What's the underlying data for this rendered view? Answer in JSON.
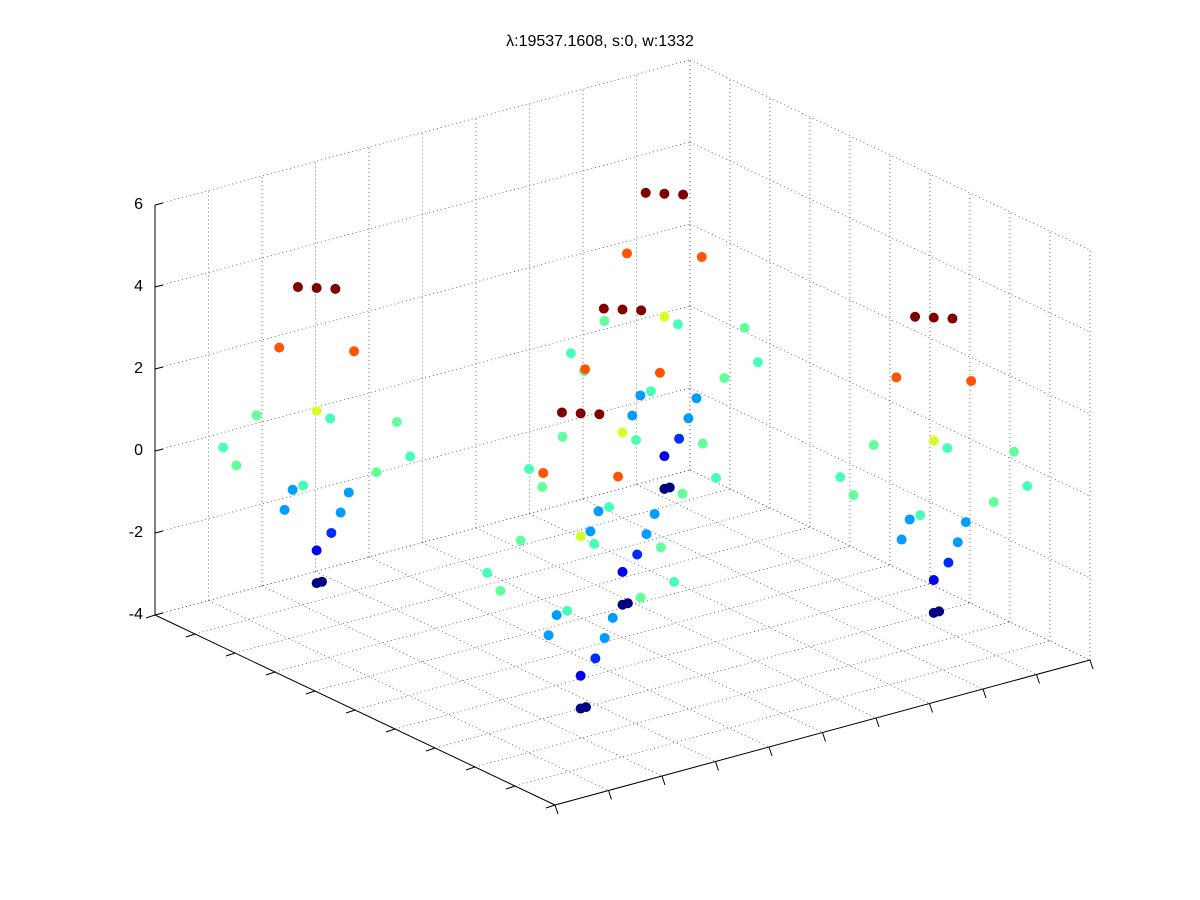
{
  "chart_data": {
    "type": "scatter3d",
    "title": "λ:19537.1608, s:0, w:1332",
    "xlim": [
      0,
      10
    ],
    "ylim": [
      0,
      10
    ],
    "zlim": [
      -4,
      6
    ],
    "xticks": [
      0,
      1,
      2,
      3,
      4,
      5,
      6,
      7,
      8,
      9,
      10
    ],
    "yticks": [
      0,
      1,
      2,
      3,
      4,
      5,
      6,
      7,
      8,
      9,
      10
    ],
    "zticks": [
      -4,
      -2,
      0,
      2,
      4,
      6
    ],
    "grid": true,
    "colormap": "jet",
    "x": [
      1.9,
      2,
      1.9,
      2.1,
      2.5,
      1.3,
      1.9,
      1.9,
      2.9,
      2.9,
      0.9,
      0.9,
      3.4,
      0.4,
      1.9,
      1.9,
      1.9,
      2.3,
      1.5,
      1.9,
      2.1,
      1.7,
      8.4,
      8.5,
      8.4,
      8.6,
      9,
      7.8,
      8.4,
      8.4,
      9.4,
      9.4,
      7.4,
      7.4,
      9.9,
      6.9,
      8.4,
      8.4,
      8.4,
      8.8,
      8,
      8.4,
      8.6,
      8.2,
      5,
      5.1,
      5,
      5.2,
      5.6,
      4.4,
      5,
      5,
      6,
      6,
      4,
      4,
      6.5,
      3.5,
      5,
      5,
      5,
      5.4,
      4.6,
      5,
      5.2,
      4.8,
      1.9,
      2,
      1.9,
      2.1,
      2.5,
      1.3,
      1.9,
      1.9,
      2.9,
      2.9,
      0.9,
      0.9,
      3.4,
      0.4,
      1.9,
      1.9,
      1.9,
      2.3,
      1.5,
      1.9,
      2.1,
      1.7,
      8.5,
      8.6,
      8.5,
      8.7,
      9.1,
      7.9,
      8.5,
      8.5,
      9.5,
      9.5,
      7.5,
      7.5,
      10,
      7,
      8.5,
      8.5,
      8.5,
      8.9,
      8.1,
      8.5,
      8.7,
      8.3
    ],
    "y": [
      1.5,
      1.5,
      1.5,
      1.6,
      1.5,
      1.5,
      2.1,
      0.9,
      2.5,
      0.5,
      2.5,
      0.5,
      1.5,
      1.5,
      3,
      0,
      1.5,
      1.9,
      1.1,
      1.5,
      1.7,
      1.3,
      1.5,
      1.5,
      1.5,
      1.6,
      1.5,
      1.5,
      2.1,
      0.9,
      2.5,
      0.5,
      2.5,
      0.5,
      1.5,
      1.5,
      3,
      0,
      1.5,
      1.9,
      1.1,
      1.5,
      1.7,
      1.3,
      5,
      5,
      5,
      5.1,
      5,
      5,
      5.6,
      4.4,
      6,
      4,
      6,
      4,
      5,
      5,
      6.5,
      3.5,
      5,
      5.4,
      4.6,
      5,
      5.2,
      4.8,
      8.1,
      8.1,
      8.1,
      8.2,
      8.1,
      8.1,
      8.7,
      7.5,
      9.1,
      7.1,
      9.1,
      7.1,
      8.1,
      8.1,
      9.6,
      6.6,
      8.1,
      8.5,
      7.7,
      8.1,
      8.3,
      7.9,
      8.1,
      8.1,
      8.1,
      8.2,
      8.1,
      8.1,
      8.7,
      7.5,
      9.1,
      7.1,
      9.1,
      7.1,
      8.1,
      8.1,
      9.6,
      6.6,
      8.1,
      8.5,
      7.7,
      8.1,
      8.3,
      7.9
    ],
    "z": [
      -3.2,
      -3.2,
      -2.4,
      -2,
      -1.2,
      -1.2,
      -1.2,
      -1.2,
      0,
      0,
      0,
      0,
      0.2,
      0.2,
      0.2,
      0.2,
      1,
      2.5,
      2.5,
      4,
      4,
      4,
      -3.2,
      -3.2,
      -2.4,
      -2,
      -1.2,
      -1.2,
      -1.2,
      -1.2,
      0,
      0,
      0,
      0,
      0.2,
      0.2,
      0.2,
      0.2,
      1,
      2.5,
      2.5,
      4,
      4,
      4,
      -3.2,
      -3.2,
      -2.4,
      -2,
      -1.2,
      -1.2,
      -1.2,
      -1.2,
      0,
      0,
      0,
      0,
      0.2,
      0.2,
      0.2,
      0.2,
      1,
      2.5,
      2.5,
      4,
      4,
      4,
      -3.2,
      -3.2,
      -2.4,
      -2,
      -1.2,
      -1.2,
      -1.2,
      -1.2,
      0,
      0,
      0,
      0,
      0.2,
      0.2,
      0.2,
      0.2,
      1,
      2.5,
      2.5,
      4,
      4,
      4,
      -3.2,
      -3.2,
      -2.4,
      -2,
      -1.2,
      -1.2,
      -1.2,
      -1.2,
      0,
      0,
      0,
      0,
      0.2,
      0.2,
      0.2,
      0.2,
      1,
      2.5,
      2.5,
      4,
      4,
      4
    ]
  }
}
